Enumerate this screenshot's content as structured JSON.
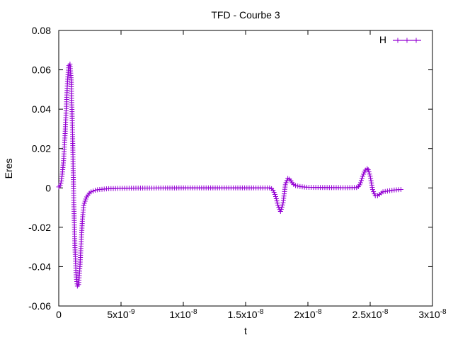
{
  "chart_data": {
    "type": "line",
    "title": "TFD - Courbe 3",
    "xlabel": "t",
    "ylabel": "Eres",
    "xlim": [
      0,
      3e-08
    ],
    "ylim": [
      -0.06,
      0.08
    ],
    "grid": false,
    "legend": "top-right",
    "x_ticks": [
      {
        "value": 0,
        "label": "0",
        "exp": ""
      },
      {
        "value": 5e-09,
        "label": "5x10",
        "exp": "-9"
      },
      {
        "value": 1e-08,
        "label": "1x10",
        "exp": "-8"
      },
      {
        "value": 1.5e-08,
        "label": "1.5x10",
        "exp": "-8"
      },
      {
        "value": 2e-08,
        "label": "2x10",
        "exp": "-8"
      },
      {
        "value": 2.5e-08,
        "label": "2.5x10",
        "exp": "-8"
      },
      {
        "value": 3e-08,
        "label": "3x10",
        "exp": "-8"
      }
    ],
    "y_ticks": [
      {
        "value": -0.06,
        "label": "-0.06"
      },
      {
        "value": -0.04,
        "label": "-0.04"
      },
      {
        "value": -0.02,
        "label": "-0.02"
      },
      {
        "value": 0,
        "label": "0"
      },
      {
        "value": 0.02,
        "label": "0.02"
      },
      {
        "value": 0.04,
        "label": "0.04"
      },
      {
        "value": 0.06,
        "label": "0.06"
      },
      {
        "value": 0.08,
        "label": "0.08"
      }
    ],
    "series": [
      {
        "name": "H",
        "color": "#9400d3",
        "marker": "plus",
        "x": [
          0,
          1e-10,
          2e-10,
          3e-10,
          4e-10,
          5e-10,
          6e-10,
          7e-10,
          8e-10,
          9e-10,
          1e-09,
          1.1e-09,
          1.2e-09,
          1.3e-09,
          1.4e-09,
          1.5e-09,
          1.6e-09,
          1.7e-09,
          1.8e-09,
          1.9e-09,
          2e-09,
          2.2e-09,
          2.4e-09,
          2.6e-09,
          2.8e-09,
          3e-09,
          3.3e-09,
          3.6e-09,
          4e-09,
          4.5e-09,
          5e-09,
          6e-09,
          8e-09,
          1e-08,
          1.2e-08,
          1.4e-08,
          1.6e-08,
          1.7e-08,
          1.72e-08,
          1.74e-08,
          1.76e-08,
          1.78e-08,
          1.8e-08,
          1.82e-08,
          1.84e-08,
          1.86e-08,
          1.88e-08,
          1.9e-08,
          1.93e-08,
          1.96e-08,
          2e-08,
          2.1e-08,
          2.3e-08,
          2.4e-08,
          2.42e-08,
          2.44e-08,
          2.46e-08,
          2.48e-08,
          2.5e-08,
          2.52e-08,
          2.54e-08,
          2.56e-08,
          2.58e-08,
          2.6e-08,
          2.65e-08,
          2.7e-08,
          2.75e-08
        ],
        "y": [
          0.0005,
          0.001,
          0.003,
          0.008,
          0.015,
          0.026,
          0.04,
          0.054,
          0.062,
          0.063,
          0.055,
          0.03,
          -0.005,
          -0.03,
          -0.045,
          -0.05,
          -0.049,
          -0.04,
          -0.028,
          -0.016,
          -0.009,
          -0.005,
          -0.003,
          -0.002,
          -0.0015,
          -0.001,
          -0.0008,
          -0.0006,
          -0.0004,
          -0.0003,
          -0.0002,
          -0.0001,
          -5e-05,
          0,
          0,
          0,
          0,
          0,
          -0.001,
          -0.004,
          -0.009,
          -0.012,
          -0.008,
          0.002,
          0.005,
          0.004,
          0.002,
          0.0012,
          0.0008,
          0.0005,
          0.0003,
          0.0002,
          0.0001,
          0.0002,
          0.002,
          0.006,
          0.009,
          0.01,
          0.006,
          -0.001,
          -0.004,
          -0.004,
          -0.003,
          -0.002,
          -0.0015,
          -0.001,
          -0.0008
        ]
      }
    ]
  }
}
